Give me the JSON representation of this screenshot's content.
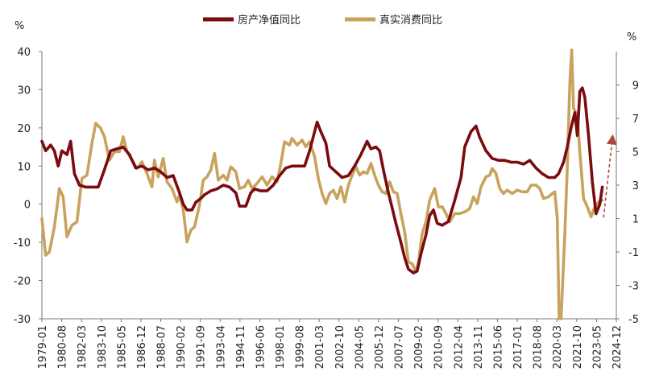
{
  "chart_data": {
    "type": "line",
    "title": "",
    "legend": [
      {
        "name": "房产净值同比",
        "color": "#7a0c10",
        "axis": "left"
      },
      {
        "name": "真实消费同比",
        "color": "#c9a35e",
        "axis": "right"
      }
    ],
    "legend_placement": "top-center",
    "y_left": {
      "unit": "%",
      "min": -30,
      "max": 40,
      "ticks": [
        -30,
        -20,
        -10,
        0,
        10,
        20,
        30,
        40
      ]
    },
    "y_right": {
      "unit": "%",
      "min": -5,
      "max": 11,
      "ticks": [
        -5,
        -3,
        -1,
        1,
        3,
        5,
        7,
        9
      ]
    },
    "x_categories": [
      "1979-01",
      "1980-08",
      "1982-03",
      "1983-10",
      "1985-05",
      "1986-12",
      "1988-07",
      "1990-02",
      "1991-09",
      "1993-04",
      "1994-11",
      "1996-06",
      "1998-01",
      "1999-08",
      "2001-03",
      "2002-10",
      "2004-05",
      "2005-12",
      "2007-07",
      "2009-02",
      "2010-09",
      "2012-04",
      "2013-11",
      "2015-06",
      "2017-01",
      "2018-08",
      "2020-03",
      "2021-10",
      "2023-05",
      "2024-12"
    ],
    "x_range": [
      1979.0,
      2024.92
    ],
    "grid": false,
    "series": [
      {
        "name": "房产净值同比",
        "axis": "left",
        "points": [
          [
            1979.0,
            16.5
          ],
          [
            1979.3,
            14.0
          ],
          [
            1979.7,
            15.5
          ],
          [
            1980.0,
            14.0
          ],
          [
            1980.3,
            10.0
          ],
          [
            1980.6,
            14.0
          ],
          [
            1981.0,
            13.0
          ],
          [
            1981.3,
            16.5
          ],
          [
            1981.6,
            8.0
          ],
          [
            1982.0,
            5.0
          ],
          [
            1982.5,
            4.5
          ],
          [
            1983.0,
            4.5
          ],
          [
            1983.5,
            4.5
          ],
          [
            1984.0,
            9.0
          ],
          [
            1984.5,
            14.0
          ],
          [
            1985.0,
            14.5
          ],
          [
            1985.5,
            15.0
          ],
          [
            1986.0,
            13.0
          ],
          [
            1986.5,
            9.5
          ],
          [
            1987.0,
            10.0
          ],
          [
            1987.5,
            9.0
          ],
          [
            1988.0,
            9.5
          ],
          [
            1988.5,
            8.5
          ],
          [
            1989.0,
            7.0
          ],
          [
            1989.5,
            7.5
          ],
          [
            1990.0,
            3.0
          ],
          [
            1990.3,
            0.0
          ],
          [
            1990.6,
            -1.5
          ],
          [
            1991.0,
            -1.5
          ],
          [
            1991.3,
            0.5
          ],
          [
            1991.7,
            1.5
          ],
          [
            1992.0,
            2.5
          ],
          [
            1992.5,
            3.5
          ],
          [
            1993.0,
            4.0
          ],
          [
            1993.5,
            5.0
          ],
          [
            1994.0,
            4.5
          ],
          [
            1994.5,
            3.0
          ],
          [
            1994.8,
            -0.5
          ],
          [
            1995.3,
            -0.5
          ],
          [
            1995.7,
            3.0
          ],
          [
            1996.0,
            4.0
          ],
          [
            1996.5,
            3.5
          ],
          [
            1997.0,
            3.5
          ],
          [
            1997.5,
            5.0
          ],
          [
            1998.0,
            7.5
          ],
          [
            1998.5,
            9.5
          ],
          [
            1999.0,
            10.0
          ],
          [
            1999.5,
            10.0
          ],
          [
            2000.0,
            10.0
          ],
          [
            2000.4,
            14.0
          ],
          [
            2000.8,
            19.0
          ],
          [
            2001.0,
            21.5
          ],
          [
            2001.3,
            19.0
          ],
          [
            2001.7,
            16.0
          ],
          [
            2002.0,
            10.0
          ],
          [
            2002.5,
            8.5
          ],
          [
            2003.0,
            7.0
          ],
          [
            2003.5,
            7.5
          ],
          [
            2004.0,
            10.0
          ],
          [
            2004.5,
            13.0
          ],
          [
            2005.0,
            16.5
          ],
          [
            2005.3,
            14.5
          ],
          [
            2005.7,
            15.0
          ],
          [
            2006.0,
            14.0
          ],
          [
            2006.3,
            9.0
          ],
          [
            2006.7,
            3.0
          ],
          [
            2007.0,
            -1.0
          ],
          [
            2007.3,
            -5.0
          ],
          [
            2007.7,
            -10.0
          ],
          [
            2008.0,
            -14.0
          ],
          [
            2008.3,
            -17.0
          ],
          [
            2008.7,
            -18.0
          ],
          [
            2009.0,
            -17.5
          ],
          [
            2009.3,
            -13.0
          ],
          [
            2009.7,
            -8.0
          ],
          [
            2010.0,
            -3.0
          ],
          [
            2010.3,
            -1.5
          ],
          [
            2010.6,
            -5.0
          ],
          [
            2011.0,
            -5.5
          ],
          [
            2011.5,
            -4.5
          ],
          [
            2012.0,
            1.0
          ],
          [
            2012.5,
            7.0
          ],
          [
            2012.8,
            15.0
          ],
          [
            2013.3,
            19.0
          ],
          [
            2013.7,
            20.5
          ],
          [
            2014.0,
            17.5
          ],
          [
            2014.5,
            14.0
          ],
          [
            2015.0,
            12.0
          ],
          [
            2015.5,
            11.5
          ],
          [
            2016.0,
            11.5
          ],
          [
            2016.5,
            11.0
          ],
          [
            2017.0,
            11.0
          ],
          [
            2017.5,
            10.5
          ],
          [
            2018.0,
            11.5
          ],
          [
            2018.5,
            9.5
          ],
          [
            2019.0,
            8.0
          ],
          [
            2019.5,
            7.0
          ],
          [
            2020.0,
            7.0
          ],
          [
            2020.3,
            8.0
          ],
          [
            2020.7,
            11.0
          ],
          [
            2021.0,
            15.0
          ],
          [
            2021.3,
            20.0
          ],
          [
            2021.6,
            24.0
          ],
          [
            2021.8,
            18.0
          ],
          [
            2022.0,
            29.5
          ],
          [
            2022.2,
            30.5
          ],
          [
            2022.4,
            28.0
          ],
          [
            2022.7,
            18.0
          ],
          [
            2023.0,
            6.0
          ],
          [
            2023.3,
            -2.5
          ],
          [
            2023.6,
            0.0
          ],
          [
            2023.8,
            4.5
          ]
        ]
      },
      {
        "name": "真实消费同比",
        "axis": "right",
        "points": [
          [
            1979.0,
            1.0
          ],
          [
            1979.3,
            -1.2
          ],
          [
            1979.6,
            -1.0
          ],
          [
            1980.0,
            0.5
          ],
          [
            1980.4,
            2.8
          ],
          [
            1980.7,
            2.3
          ],
          [
            1981.0,
            -0.1
          ],
          [
            1981.4,
            0.6
          ],
          [
            1981.8,
            0.8
          ],
          [
            1982.2,
            3.4
          ],
          [
            1982.6,
            3.6
          ],
          [
            1983.0,
            5.5
          ],
          [
            1983.3,
            6.7
          ],
          [
            1983.7,
            6.4
          ],
          [
            1984.0,
            5.9
          ],
          [
            1984.4,
            4.5
          ],
          [
            1984.8,
            5.0
          ],
          [
            1985.2,
            5.0
          ],
          [
            1985.5,
            5.9
          ],
          [
            1985.8,
            5.0
          ],
          [
            1986.2,
            4.5
          ],
          [
            1986.6,
            4.0
          ],
          [
            1987.0,
            4.4
          ],
          [
            1987.4,
            3.7
          ],
          [
            1987.8,
            2.9
          ],
          [
            1988.0,
            4.5
          ],
          [
            1988.3,
            3.5
          ],
          [
            1988.7,
            4.6
          ],
          [
            1989.0,
            3.2
          ],
          [
            1989.4,
            2.8
          ],
          [
            1989.8,
            2.0
          ],
          [
            1990.0,
            2.4
          ],
          [
            1990.3,
            1.5
          ],
          [
            1990.6,
            -0.4
          ],
          [
            1990.9,
            0.3
          ],
          [
            1991.2,
            0.5
          ],
          [
            1991.6,
            1.8
          ],
          [
            1991.9,
            3.3
          ],
          [
            1992.2,
            3.5
          ],
          [
            1992.5,
            3.9
          ],
          [
            1992.8,
            4.9
          ],
          [
            1993.1,
            3.3
          ],
          [
            1993.5,
            3.6
          ],
          [
            1993.8,
            3.3
          ],
          [
            1994.1,
            4.1
          ],
          [
            1994.5,
            3.8
          ],
          [
            1994.8,
            2.8
          ],
          [
            1995.2,
            2.9
          ],
          [
            1995.5,
            3.3
          ],
          [
            1995.8,
            2.8
          ],
          [
            1996.2,
            3.1
          ],
          [
            1996.6,
            3.5
          ],
          [
            1997.0,
            3.0
          ],
          [
            1997.4,
            3.5
          ],
          [
            1997.8,
            3.2
          ],
          [
            1998.1,
            4.3
          ],
          [
            1998.4,
            5.6
          ],
          [
            1998.8,
            5.4
          ],
          [
            1999.0,
            5.8
          ],
          [
            1999.4,
            5.4
          ],
          [
            1999.8,
            5.7
          ],
          [
            2000.1,
            5.3
          ],
          [
            2000.4,
            5.6
          ],
          [
            2000.8,
            4.7
          ],
          [
            2001.1,
            3.4
          ],
          [
            2001.4,
            2.5
          ],
          [
            2001.7,
            1.9
          ],
          [
            2002.0,
            2.5
          ],
          [
            2002.3,
            2.7
          ],
          [
            2002.6,
            2.2
          ],
          [
            2002.9,
            2.9
          ],
          [
            2003.2,
            2.0
          ],
          [
            2003.5,
            3.0
          ],
          [
            2003.8,
            3.6
          ],
          [
            2004.1,
            4.1
          ],
          [
            2004.4,
            3.6
          ],
          [
            2004.7,
            3.8
          ],
          [
            2005.0,
            3.7
          ],
          [
            2005.3,
            4.3
          ],
          [
            2005.6,
            3.6
          ],
          [
            2005.9,
            3.0
          ],
          [
            2006.2,
            2.6
          ],
          [
            2006.5,
            2.5
          ],
          [
            2006.8,
            3.2
          ],
          [
            2007.1,
            2.6
          ],
          [
            2007.4,
            2.5
          ],
          [
            2007.7,
            1.3
          ],
          [
            2008.0,
            0.2
          ],
          [
            2008.3,
            -1.6
          ],
          [
            2008.6,
            -1.7
          ],
          [
            2008.9,
            -2.2
          ],
          [
            2009.1,
            -1.6
          ],
          [
            2009.4,
            0.1
          ],
          [
            2009.7,
            0.8
          ],
          [
            2010.0,
            2.1
          ],
          [
            2010.4,
            2.8
          ],
          [
            2010.7,
            1.7
          ],
          [
            2011.0,
            1.7
          ],
          [
            2011.3,
            1.3
          ],
          [
            2011.6,
            0.8
          ],
          [
            2012.0,
            1.3
          ],
          [
            2012.4,
            1.3
          ],
          [
            2012.8,
            1.4
          ],
          [
            2013.2,
            1.6
          ],
          [
            2013.5,
            2.3
          ],
          [
            2013.8,
            1.9
          ],
          [
            2014.1,
            2.9
          ],
          [
            2014.5,
            3.5
          ],
          [
            2014.8,
            3.6
          ],
          [
            2015.0,
            4.0
          ],
          [
            2015.3,
            3.7
          ],
          [
            2015.6,
            2.8
          ],
          [
            2015.9,
            2.5
          ],
          [
            2016.2,
            2.7
          ],
          [
            2016.6,
            2.5
          ],
          [
            2017.0,
            2.7
          ],
          [
            2017.4,
            2.6
          ],
          [
            2017.8,
            2.6
          ],
          [
            2018.1,
            3.0
          ],
          [
            2018.5,
            3.0
          ],
          [
            2018.8,
            2.8
          ],
          [
            2019.1,
            2.2
          ],
          [
            2019.5,
            2.3
          ],
          [
            2019.8,
            2.5
          ],
          [
            2020.0,
            2.6
          ],
          [
            2020.2,
            1.0
          ],
          [
            2020.35,
            -5.0
          ],
          [
            2020.5,
            -5.0
          ],
          [
            2020.65,
            -2.5
          ],
          [
            2020.8,
            0.0
          ],
          [
            2021.0,
            4.0
          ],
          [
            2021.2,
            9.0
          ],
          [
            2021.35,
            11.2
          ],
          [
            2021.5,
            7.6
          ],
          [
            2021.8,
            7.2
          ],
          [
            2022.0,
            5.0
          ],
          [
            2022.3,
            2.2
          ],
          [
            2022.6,
            1.7
          ],
          [
            2022.9,
            1.1
          ],
          [
            2023.2,
            1.7
          ],
          [
            2023.5,
            2.0
          ],
          [
            2023.8,
            2.1
          ]
        ]
      }
    ],
    "trend_arrow": {
      "from": [
        2023.9,
        -3.5
      ],
      "to": [
        2025.2,
        17.0
      ],
      "axis": "left",
      "style": "dashed",
      "color": "#b0473a"
    }
  }
}
